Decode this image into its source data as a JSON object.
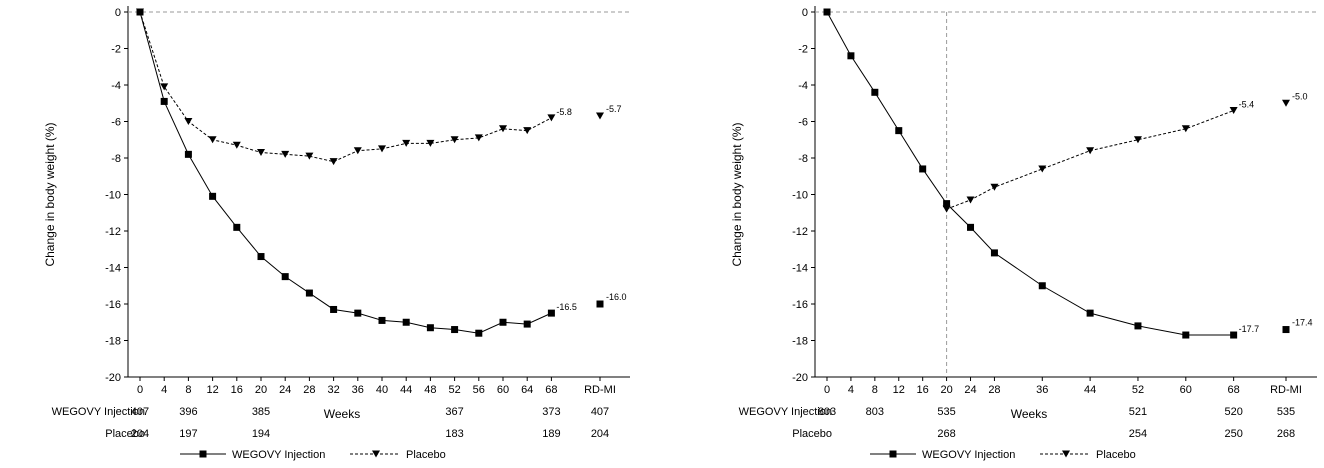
{
  "colors": {
    "line": "#000000",
    "ref": "#9a9a9a",
    "background": "#ffffff"
  },
  "chart_data": [
    {
      "type": "line",
      "title": "",
      "ylabel": "Change in body weight (%)",
      "xlabel": "Weeks",
      "ylim": [
        -20,
        0
      ],
      "yticks": [
        0,
        -2,
        -4,
        -6,
        -8,
        -10,
        -12,
        -14,
        -16,
        -18,
        -20
      ],
      "xticks": [
        "0",
        "4",
        "8",
        "12",
        "16",
        "20",
        "24",
        "28",
        "32",
        "36",
        "40",
        "44",
        "48",
        "52",
        "56",
        "60",
        "64",
        "68",
        "RD-MI"
      ],
      "grid": false,
      "zero_reference_line": true,
      "vertical_reference_week": null,
      "series": [
        {
          "name": "WEGOVY Injection",
          "marker": "square",
          "linestyle": "solid",
          "x": [
            0,
            4,
            8,
            12,
            16,
            20,
            24,
            28,
            32,
            36,
            40,
            44,
            48,
            52,
            56,
            60,
            64,
            68
          ],
          "values": [
            0,
            -4.9,
            -7.8,
            -10.1,
            -11.8,
            -13.4,
            -14.5,
            -15.4,
            -16.3,
            -16.5,
            -16.9,
            -17.0,
            -17.3,
            -17.4,
            -17.6,
            -17.0,
            -17.1,
            -16.5
          ],
          "end_label": "-16.5",
          "rdmi": -16.0,
          "rdmi_label": "-16.0"
        },
        {
          "name": "Placebo",
          "marker": "triangle-down",
          "linestyle": "dashed",
          "x": [
            0,
            4,
            8,
            12,
            16,
            20,
            24,
            28,
            32,
            36,
            40,
            44,
            48,
            52,
            56,
            60,
            64,
            68
          ],
          "values": [
            0,
            -4.1,
            -6.0,
            -7.0,
            -7.3,
            -7.7,
            -7.8,
            -7.9,
            -8.2,
            -7.6,
            -7.5,
            -7.2,
            -7.2,
            -7.0,
            -6.9,
            -6.4,
            -6.5,
            -5.8
          ],
          "end_label": "-5.8",
          "rdmi": -5.7,
          "rdmi_label": "-5.7"
        }
      ],
      "at_risk": {
        "rows": [
          {
            "label": "WEGOVY Injection",
            "cells": [
              {
                "x": "0",
                "n": "407"
              },
              {
                "x": "8",
                "n": "396"
              },
              {
                "x": "20",
                "n": "385"
              },
              {
                "x": "52",
                "n": "367"
              },
              {
                "x": "68",
                "n": "373"
              },
              {
                "x": "RD-MI",
                "n": "407"
              }
            ]
          },
          {
            "label": "Placebo",
            "cells": [
              {
                "x": "0",
                "n": "204"
              },
              {
                "x": "8",
                "n": "197"
              },
              {
                "x": "20",
                "n": "194"
              },
              {
                "x": "52",
                "n": "183"
              },
              {
                "x": "68",
                "n": "189"
              },
              {
                "x": "RD-MI",
                "n": "204"
              }
            ]
          }
        ]
      },
      "legend": {
        "placement": "bottom-center",
        "entries": [
          "WEGOVY Injection",
          "Placebo"
        ]
      }
    },
    {
      "type": "line",
      "title": "",
      "ylabel": "Change in body weight (%)",
      "xlabel": "Weeks",
      "ylim": [
        -20,
        0
      ],
      "yticks": [
        0,
        -2,
        -4,
        -6,
        -8,
        -10,
        -12,
        -14,
        -16,
        -18,
        -20
      ],
      "xticks": [
        "0",
        "4",
        "8",
        "12",
        "16",
        "20",
        "24",
        "28",
        "36",
        "44",
        "52",
        "60",
        "68",
        "RD-MI"
      ],
      "grid": false,
      "zero_reference_line": true,
      "vertical_reference_week": 20,
      "series": [
        {
          "name": "WEGOVY Injection",
          "marker": "square",
          "linestyle": "solid",
          "x": [
            0,
            4,
            8,
            12,
            16,
            20,
            24,
            28,
            36,
            44,
            52,
            60,
            68
          ],
          "values": [
            0,
            -2.4,
            -4.4,
            -6.5,
            -8.6,
            -10.5,
            -11.8,
            -13.2,
            -15.0,
            -16.5,
            -17.2,
            -17.7,
            -17.7
          ],
          "end_label": "-17.7",
          "rdmi": -17.4,
          "rdmi_label": "-17.4"
        },
        {
          "name": "Placebo",
          "marker": "triangle-down",
          "linestyle": "dashed",
          "x": [
            20,
            24,
            28,
            36,
            44,
            52,
            60,
            68
          ],
          "values": [
            -10.8,
            -10.3,
            -9.6,
            -8.6,
            -7.6,
            -7.0,
            -6.4,
            -5.4
          ],
          "end_label": "-5.4",
          "rdmi": -5.0,
          "rdmi_label": "-5.0"
        }
      ],
      "at_risk": {
        "rows": [
          {
            "label": "WEGOVY Injection",
            "cells": [
              {
                "x": "0",
                "n": "803"
              },
              {
                "x": "8",
                "n": "803"
              },
              {
                "x": "20",
                "n": "535"
              },
              {
                "x": "52",
                "n": "521"
              },
              {
                "x": "68",
                "n": "520"
              },
              {
                "x": "RD-MI",
                "n": "535"
              }
            ]
          },
          {
            "label": "Placebo",
            "cells": [
              {
                "x": "20",
                "n": "268"
              },
              {
                "x": "52",
                "n": "254"
              },
              {
                "x": "68",
                "n": "250"
              },
              {
                "x": "RD-MI",
                "n": "268"
              }
            ]
          }
        ]
      },
      "legend": {
        "placement": "bottom-center",
        "entries": [
          "WEGOVY Injection",
          "Placebo"
        ]
      }
    }
  ]
}
